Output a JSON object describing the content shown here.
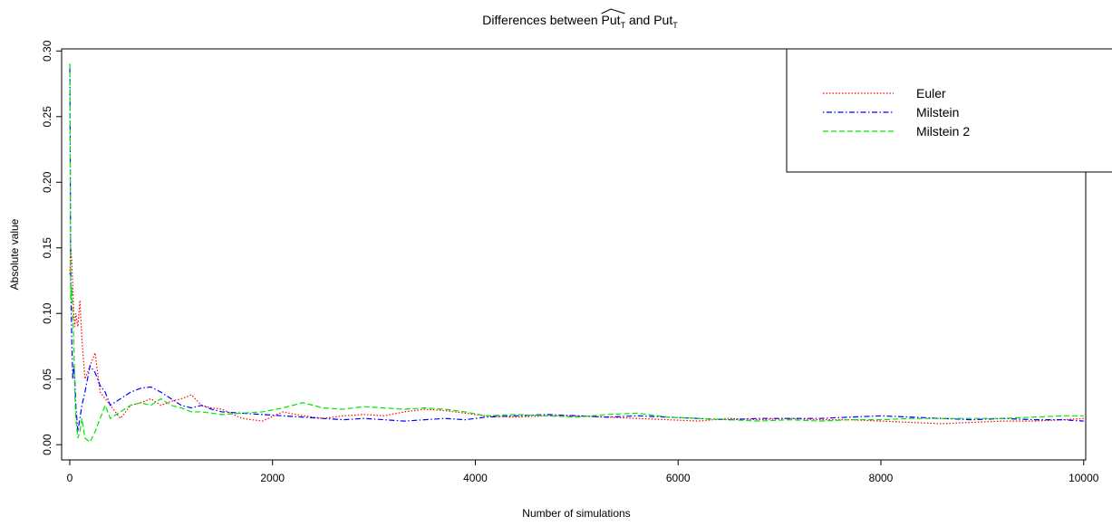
{
  "chart_data": {
    "type": "line",
    "title_parts": [
      "Differences between ",
      "Put",
      "T",
      " and ",
      "Put",
      "T"
    ],
    "x_label": "Number of simulations",
    "y_label": "Absolute value",
    "x": [
      1,
      10,
      20,
      30,
      40,
      50,
      60,
      80,
      100,
      120,
      150,
      200,
      250,
      300,
      350,
      400,
      500,
      600,
      700,
      800,
      900,
      1000,
      1100,
      1200,
      1300,
      1400,
      1500,
      1700,
      1900,
      2100,
      2300,
      2500,
      2700,
      2900,
      3100,
      3300,
      3500,
      3700,
      3900,
      4100,
      4400,
      4700,
      5000,
      5300,
      5600,
      5900,
      6200,
      6500,
      6800,
      7100,
      7400,
      7700,
      8000,
      8300,
      8600,
      8900,
      9200,
      9500,
      9800,
      10000
    ],
    "series": [
      {
        "name": "Euler",
        "color": "#ff0000",
        "dash": "dotted",
        "values": [
          0.13,
          0.15,
          0.14,
          0.12,
          0.1,
          0.09,
          0.1,
          0.09,
          0.11,
          0.08,
          0.05,
          0.06,
          0.07,
          0.04,
          0.035,
          0.03,
          0.02,
          0.03,
          0.032,
          0.035,
          0.03,
          0.033,
          0.035,
          0.038,
          0.03,
          0.028,
          0.027,
          0.02,
          0.018,
          0.025,
          0.022,
          0.02,
          0.022,
          0.023,
          0.022,
          0.025,
          0.027,
          0.026,
          0.024,
          0.022,
          0.021,
          0.022,
          0.022,
          0.021,
          0.02,
          0.019,
          0.018,
          0.02,
          0.019,
          0.02,
          0.019,
          0.019,
          0.018,
          0.017,
          0.016,
          0.017,
          0.018,
          0.018,
          0.019,
          0.02
        ]
      },
      {
        "name": "Milstein",
        "color": "#0000ff",
        "dash": "dotdash",
        "values": [
          0.29,
          0.12,
          0.08,
          0.05,
          0.06,
          0.05,
          0.03,
          0.01,
          0.02,
          0.03,
          0.04,
          0.06,
          0.055,
          0.045,
          0.04,
          0.03,
          0.035,
          0.04,
          0.043,
          0.044,
          0.04,
          0.035,
          0.03,
          0.028,
          0.03,
          0.027,
          0.025,
          0.024,
          0.023,
          0.022,
          0.021,
          0.02,
          0.019,
          0.02,
          0.019,
          0.018,
          0.019,
          0.02,
          0.019,
          0.021,
          0.022,
          0.023,
          0.022,
          0.021,
          0.022,
          0.021,
          0.02,
          0.019,
          0.02,
          0.02,
          0.02,
          0.021,
          0.022,
          0.021,
          0.02,
          0.019,
          0.02,
          0.019,
          0.019,
          0.018
        ]
      },
      {
        "name": "Milstein 2",
        "color": "#00e600",
        "dash": "dashed",
        "values": [
          0.29,
          0.11,
          0.12,
          0.1,
          0.08,
          0.04,
          0.02,
          0.005,
          0.01,
          0.02,
          0.005,
          0.002,
          0.01,
          0.02,
          0.03,
          0.02,
          0.025,
          0.03,
          0.032,
          0.03,
          0.035,
          0.03,
          0.028,
          0.025,
          0.025,
          0.024,
          0.023,
          0.024,
          0.025,
          0.028,
          0.032,
          0.028,
          0.027,
          0.029,
          0.028,
          0.027,
          0.028,
          0.027,
          0.025,
          0.022,
          0.023,
          0.022,
          0.021,
          0.023,
          0.024,
          0.021,
          0.02,
          0.019,
          0.018,
          0.019,
          0.018,
          0.019,
          0.019,
          0.02,
          0.02,
          0.02,
          0.02,
          0.021,
          0.022,
          0.022
        ]
      }
    ],
    "xlim": [
      -80,
      10020
    ],
    "ylim": [
      -0.0116,
      0.3016
    ],
    "xticks": [
      0,
      2000,
      4000,
      6000,
      8000,
      10000
    ],
    "yticks": [
      {
        "value": 0,
        "label": "0.00"
      },
      0.05,
      {
        "value": 0.1,
        "label": "0.10"
      },
      0.15,
      {
        "value": 0.2,
        "label": "0.20"
      },
      0.25,
      {
        "value": 0.3,
        "label": "0.30"
      }
    ],
    "legend": "top-right"
  }
}
